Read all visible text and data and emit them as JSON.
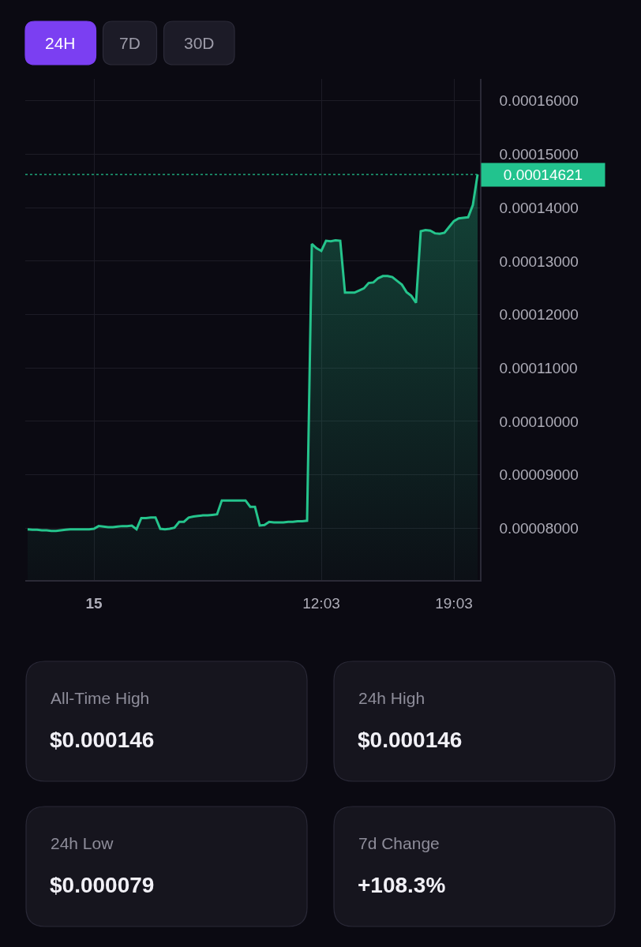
{
  "chart_data": [
    {
      "type": "other",
      "categories": [
        "24H",
        "7D",
        "30D"
      ],
      "colors": [
        "#7b3ff2",
        "#1c1b27",
        "#1c1b27"
      ]
    },
    {
      "type": "area",
      "color": "#25c48c",
      "categories": [
        null,
        null,
        null,
        null,
        null,
        null,
        null,
        null,
        null,
        null,
        null,
        null,
        null,
        null,
        "15",
        null,
        null,
        null,
        null,
        null,
        null,
        null,
        null,
        null,
        null,
        null,
        null,
        null,
        null,
        null,
        null,
        null,
        null,
        null,
        null,
        null,
        null,
        null,
        null,
        null,
        null,
        null,
        null,
        null,
        null,
        null,
        null,
        null,
        null,
        null,
        null,
        null,
        null,
        null,
        null,
        null,
        null,
        null,
        null,
        null,
        null,
        null,
        "12:03",
        null,
        null,
        null,
        null,
        null,
        null,
        null,
        null,
        null,
        null,
        null,
        null,
        null,
        null,
        null,
        null,
        null,
        null,
        null,
        null,
        null,
        null,
        null,
        null,
        null,
        null,
        null,
        "19:03",
        null,
        null,
        null,
        null,
        null
      ],
      "values": [
        7.98e-05,
        7.97e-05,
        7.97e-05,
        7.96e-05,
        7.96e-05,
        7.95e-05,
        7.95e-05,
        7.96e-05,
        7.97e-05,
        7.98e-05,
        7.98e-05,
        7.98e-05,
        7.98e-05,
        7.98e-05,
        7.99e-05,
        8.04e-05,
        8.03e-05,
        8.02e-05,
        8.02e-05,
        8.03e-05,
        8.04e-05,
        8.04e-05,
        8.05e-05,
        7.98e-05,
        8.19e-05,
        8.19e-05,
        8.2e-05,
        8.2e-05,
        7.99e-05,
        7.98e-05,
        7.99e-05,
        8.01e-05,
        8.12e-05,
        8.12e-05,
        8.2e-05,
        8.22e-05,
        8.23e-05,
        8.24e-05,
        8.24e-05,
        8.25e-05,
        8.26e-05,
        8.52e-05,
        8.52e-05,
        8.52e-05,
        8.52e-05,
        8.52e-05,
        8.52e-05,
        8.4e-05,
        8.4e-05,
        8.05e-05,
        8.06e-05,
        8.12e-05,
        8.11e-05,
        8.11e-05,
        8.11e-05,
        8.12e-05,
        8.12e-05,
        8.13e-05,
        8.13e-05,
        8.14e-05,
        0.0001332,
        0.0001324,
        0.0001319,
        0.0001338,
        0.0001337,
        0.0001339,
        0.0001338,
        0.0001241,
        0.0001241,
        0.0001241,
        0.0001245,
        0.0001249,
        0.0001259,
        0.000126,
        0.0001268,
        0.0001272,
        0.0001272,
        0.000127,
        0.0001263,
        0.0001256,
        0.0001242,
        0.0001235,
        0.0001222,
        0.0001356,
        0.0001358,
        0.0001357,
        0.0001352,
        0.0001351,
        0.0001353,
        0.0001364,
        0.0001375,
        0.000138,
        0.0001381,
        0.0001382,
        0.0001405,
        0.00014621
      ],
      "ylim": [
        7.03e-05,
        0.0001641
      ],
      "yticks": [
        {
          "value": 8e-05,
          "label": "0.00008000"
        },
        {
          "value": 9e-05,
          "label": "0.00009000"
        },
        {
          "value": 0.0001,
          "label": "0.00010000"
        },
        {
          "value": 0.00011,
          "label": "0.00011000"
        },
        {
          "value": 0.00012,
          "label": "0.00012000"
        },
        {
          "value": 0.00013,
          "label": "0.00013000"
        },
        {
          "value": 0.00014,
          "label": "0.00014000"
        },
        {
          "value": 0.00015,
          "label": "0.00015000"
        },
        {
          "value": 0.00016,
          "label": "0.00016000"
        }
      ],
      "grid": true,
      "ref_lines": [
        {
          "axis": "y",
          "value": 0.00014621,
          "label": "0.00014621",
          "color": "#22c38e",
          "line_style": "dotted"
        }
      ]
    },
    {
      "type": "other",
      "categories": [
        "All-Time High",
        "24h High",
        "24h Low",
        "7d Change"
      ],
      "value_labels": [
        "$0.000146",
        "$0.000146",
        "$0.000079",
        "+108.3%"
      ]
    }
  ]
}
